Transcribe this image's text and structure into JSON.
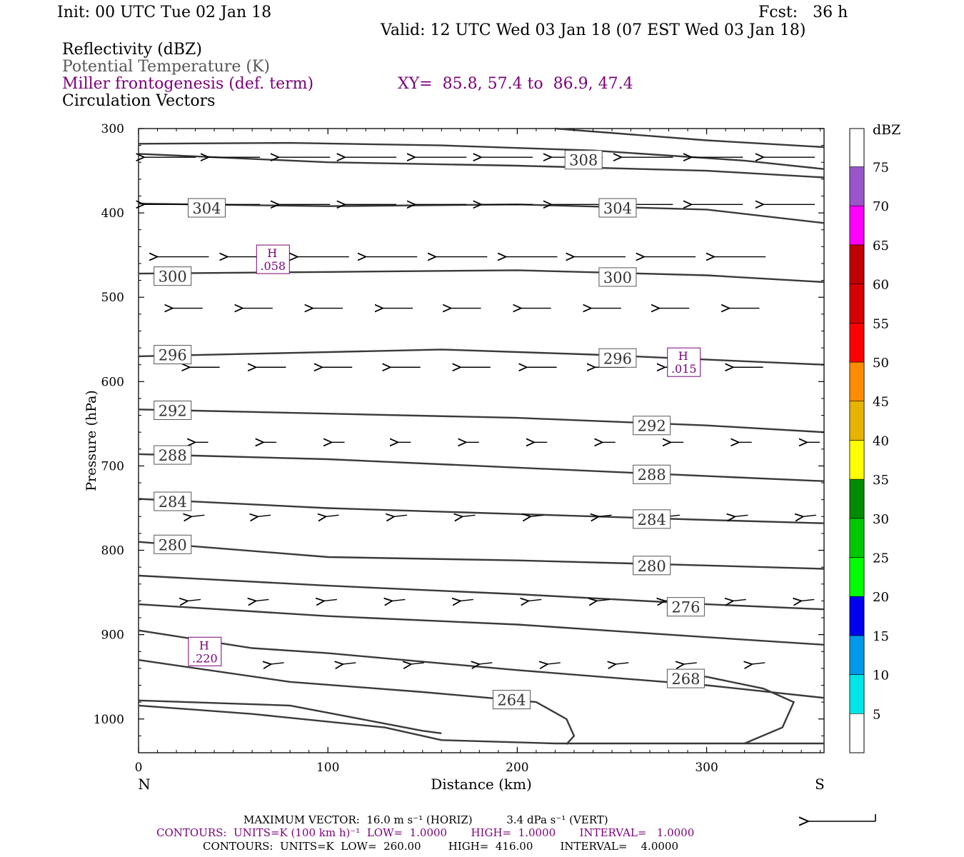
{
  "header": {
    "init": "Init: 00 UTC Tue 02 Jan 18",
    "fcst": "Fcst:   36 h",
    "valid": "Valid: 12 UTC Wed 03 Jan 18 (07 EST Wed 03 Jan 18)",
    "line_reflectivity": "Reflectivity (dBZ)",
    "line_theta": "Potential Temperature (K)",
    "line_miller": "Miller frontogenesis (def. term)",
    "xy": "XY=  85.8, 57.4 to  86.9, 47.4",
    "line_circ": "Circulation Vectors"
  },
  "colors": {
    "contour": "#3a3a3a",
    "frontogenesis": "#7a007a",
    "axis": "#000000"
  },
  "chart_data": {
    "type": "line",
    "xlabel": "Distance (km)",
    "ylabel": "Pressure (hPa)",
    "xlim": [
      0,
      362
    ],
    "ylim": [
      300,
      1040
    ],
    "y_scale": "linear, inverted",
    "grid": false,
    "x_ticks": [
      "0",
      "100",
      "200",
      "300"
    ],
    "y_ticks": [
      "300",
      "400",
      "500",
      "600",
      "700",
      "800",
      "900",
      "1000"
    ],
    "x_end_labels": {
      "left": "N",
      "right": "S"
    },
    "theta_contours": [
      {
        "value": "308",
        "points": [
          [
            0,
            318
          ],
          [
            80,
            317
          ],
          [
            160,
            320
          ],
          [
            240,
            326
          ],
          [
            320,
            338
          ],
          [
            362,
            348
          ]
        ]
      },
      {
        "value": "",
        "points": [
          [
            220,
            300
          ],
          [
            300,
            314
          ],
          [
            362,
            322
          ]
        ]
      },
      {
        "value": "",
        "points": [
          [
            0,
            330
          ],
          [
            100,
            340
          ],
          [
            200,
            344
          ],
          [
            300,
            350
          ],
          [
            362,
            358
          ]
        ]
      },
      {
        "value": "304",
        "points": [
          [
            0,
            389
          ],
          [
            100,
            392
          ],
          [
            200,
            390
          ],
          [
            300,
            396
          ],
          [
            362,
            412
          ]
        ]
      },
      {
        "value": "300",
        "points": [
          [
            0,
            472
          ],
          [
            100,
            470
          ],
          [
            200,
            468
          ],
          [
            300,
            474
          ],
          [
            362,
            482
          ]
        ]
      },
      {
        "value": "296",
        "points": [
          [
            0,
            570
          ],
          [
            80,
            566
          ],
          [
            160,
            562
          ],
          [
            240,
            568
          ],
          [
            362,
            580
          ]
        ]
      },
      {
        "value": "292",
        "points": [
          [
            0,
            633
          ],
          [
            100,
            638
          ],
          [
            200,
            643
          ],
          [
            300,
            652
          ],
          [
            362,
            660
          ]
        ]
      },
      {
        "value": "288",
        "points": [
          [
            0,
            686
          ],
          [
            100,
            692
          ],
          [
            200,
            702
          ],
          [
            300,
            712
          ],
          [
            362,
            718
          ]
        ]
      },
      {
        "value": "284",
        "points": [
          [
            0,
            739
          ],
          [
            100,
            750
          ],
          [
            200,
            757
          ],
          [
            300,
            764
          ],
          [
            362,
            768
          ]
        ]
      },
      {
        "value": "280",
        "points": [
          [
            0,
            790
          ],
          [
            100,
            808
          ],
          [
            200,
            812
          ],
          [
            300,
            818
          ],
          [
            362,
            822
          ]
        ]
      },
      {
        "value": "276",
        "points": [
          [
            0,
            830
          ],
          [
            100,
            842
          ],
          [
            200,
            852
          ],
          [
            300,
            864
          ],
          [
            362,
            870
          ]
        ]
      },
      {
        "value": "",
        "points": [
          [
            0,
            864
          ],
          [
            100,
            878
          ],
          [
            200,
            888
          ],
          [
            300,
            903
          ],
          [
            362,
            912
          ]
        ]
      },
      {
        "value": "",
        "points": [
          [
            0,
            895
          ],
          [
            60,
            916
          ],
          [
            100,
            922
          ],
          [
            200,
            942
          ],
          [
            300,
            960
          ],
          [
            362,
            975
          ]
        ]
      },
      {
        "value": "264",
        "points": [
          [
            0,
            930
          ],
          [
            80,
            956
          ],
          [
            150,
            968
          ],
          [
            210,
            980
          ],
          [
            226,
            1000
          ],
          [
            230,
            1020
          ],
          [
            226,
            1030
          ]
        ]
      },
      {
        "value": "268",
        "points": [
          [
            0,
            978
          ],
          [
            80,
            984
          ],
          [
            150,
            1014
          ],
          [
            160,
            1017
          ]
        ]
      },
      {
        "value": "",
        "points": [
          [
            0,
            984
          ],
          [
            60,
            994
          ],
          [
            130,
            1010
          ],
          [
            160,
            1025
          ],
          [
            220,
            1029
          ],
          [
            362,
            1029
          ]
        ]
      },
      {
        "value": "",
        "points": [
          [
            320,
            1029
          ],
          [
            340,
            1010
          ],
          [
            346,
            980
          ],
          [
            330,
            964
          ],
          [
            300,
            950
          ],
          [
            280,
            948
          ]
        ]
      }
    ],
    "theta_labels": [
      {
        "text": "308",
        "x": 235,
        "y": 337
      },
      {
        "text": "304",
        "x": 36,
        "y": 394
      },
      {
        "text": "304",
        "x": 253,
        "y": 394
      },
      {
        "text": "300",
        "x": 18,
        "y": 475
      },
      {
        "text": "300",
        "x": 253,
        "y": 476
      },
      {
        "text": "296",
        "x": 18,
        "y": 568
      },
      {
        "text": "296",
        "x": 253,
        "y": 572
      },
      {
        "text": "292",
        "x": 18,
        "y": 634
      },
      {
        "text": "292",
        "x": 271,
        "y": 652
      },
      {
        "text": "288",
        "x": 18,
        "y": 687
      },
      {
        "text": "288",
        "x": 271,
        "y": 710
      },
      {
        "text": "284",
        "x": 18,
        "y": 742
      },
      {
        "text": "284",
        "x": 271,
        "y": 763
      },
      {
        "text": "280",
        "x": 18,
        "y": 793
      },
      {
        "text": "280",
        "x": 271,
        "y": 818
      },
      {
        "text": "276",
        "x": 289,
        "y": 867
      },
      {
        "text": "268",
        "x": 289,
        "y": 952
      },
      {
        "text": "264",
        "x": 197,
        "y": 977
      }
    ],
    "frontogenesis_maxima": [
      {
        "label": "H",
        "value": ".058",
        "x": 71,
        "y": 455
      },
      {
        "label": "H",
        "value": ".015",
        "x": 288,
        "y": 577
      },
      {
        "label": "H",
        "value": ".220",
        "x": 35,
        "y": 920
      }
    ],
    "circulation_vectors": [
      {
        "y": 334,
        "x": [
          3,
          37,
          74,
          109,
          146,
          181,
          218,
          255,
          292,
          330,
          368
        ]
      },
      {
        "y": 390,
        "x": [
          3,
          37,
          74,
          109,
          146,
          181,
          218,
          255,
          292,
          330,
          368
        ]
      },
      {
        "y": 452,
        "x": [
          10,
          47,
          84,
          120,
          157,
          194,
          230,
          267,
          304,
          340
        ]
      },
      {
        "y": 513,
        "x": [
          18,
          55,
          92,
          129,
          165,
          202,
          239,
          275,
          312,
          349
        ]
      },
      {
        "y": 583,
        "x": [
          27,
          62,
          97,
          133,
          170,
          205,
          241,
          278,
          314,
          351
        ]
      },
      {
        "y": 672,
        "x": [
          30,
          66,
          102,
          137,
          173,
          209,
          245,
          281,
          317,
          353
        ]
      },
      {
        "y": 760,
        "x": [
          28,
          63,
          99,
          135,
          171,
          207,
          243,
          279,
          315,
          351
        ]
      },
      {
        "y": 860,
        "x": [
          26,
          62,
          98,
          134,
          170,
          206,
          242,
          278,
          314,
          350
        ]
      },
      {
        "y": 935,
        "x": [
          70,
          108,
          144,
          180,
          216,
          252,
          288,
          324
        ]
      }
    ],
    "colorbar": {
      "label": "dBZ",
      "ticks": [
        "5",
        "10",
        "15",
        "20",
        "25",
        "30",
        "35",
        "40",
        "45",
        "50",
        "55",
        "60",
        "65",
        "70",
        "75"
      ],
      "colors": [
        "#00e5e5",
        "#0098e8",
        "#0000f0",
        "#00ff00",
        "#00c800",
        "#008c00",
        "#ffff00",
        "#e6b400",
        "#ff8c00",
        "#ff0000",
        "#d70000",
        "#c00000",
        "#ff00ff",
        "#9955c9"
      ]
    }
  },
  "footer": {
    "max_vector": "MAXIMUM VECTOR:  16.0 m s⁻¹ (HORIZ)          3.4 dPa s⁻¹ (VERT)",
    "contours_purple": "CONTOURS:  UNITS=K (100 km h)⁻¹  LOW=  1.0000       HIGH=  1.0000       INTERVAL=   1.0000",
    "contours_black": "CONTOURS:  UNITS=K  LOW=  260.00        HIGH=  416.00        INTERVAL=    4.0000"
  }
}
